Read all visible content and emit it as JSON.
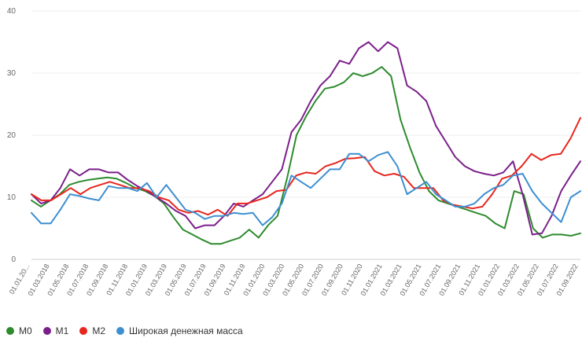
{
  "chart_data": {
    "type": "line",
    "ylim": [
      0,
      40
    ],
    "yticks": [
      "0",
      "10",
      "20",
      "30",
      "40"
    ],
    "xticks": [
      "01.01.20...",
      "01.03.2018",
      "01.05.2018",
      "01.07.2018",
      "01.09.2018",
      "01.11.2018",
      "01.01.2019",
      "01.03.2019",
      "01.05.2019",
      "01.07.2019",
      "01.09.2019",
      "01.11.2019",
      "01.01.2020",
      "01.03.2020",
      "01.05.2020",
      "01.07.2020",
      "01.09.2020",
      "01.11.2020",
      "01.01.2021",
      "01.03.2021",
      "01.05.2021",
      "01.07.2021",
      "01.09.2021",
      "01.11.2021",
      "01.01.2022",
      "01.03.2022",
      "01.05.2022",
      "01.07.2022",
      "01.09.2022"
    ],
    "grid": true,
    "legend_position": "bottom-left",
    "series": [
      {
        "name": "M0",
        "color": "#2e8b2e",
        "values": [
          9.5,
          8.5,
          9.5,
          10.5,
          12.0,
          12.5,
          12.8,
          13.0,
          13.2,
          13.0,
          12.3,
          11.5,
          11.0,
          10.2,
          9.0,
          6.8,
          4.8,
          4.0,
          3.2,
          2.5,
          2.5,
          3.0,
          3.5,
          4.8,
          3.5,
          5.5,
          7.0,
          13.0,
          20.0,
          23.0,
          25.5,
          27.5,
          27.8,
          28.5,
          30.0,
          29.5,
          30.0,
          31.0,
          29.5,
          22.5,
          18.0,
          14.0,
          11.0,
          9.5,
          9.0,
          8.5,
          8.0,
          7.5,
          7.0,
          5.8,
          5.0,
          11.0,
          10.5,
          5.0,
          3.5,
          4.0,
          4.0,
          3.8,
          4.2
        ]
      },
      {
        "name": "M1",
        "color": "#7b1f8a",
        "values": [
          10.5,
          9.0,
          9.5,
          11.5,
          14.5,
          13.5,
          14.5,
          14.5,
          14.0,
          14.0,
          12.8,
          11.8,
          11.0,
          10.0,
          9.0,
          7.8,
          7.0,
          5.0,
          5.5,
          5.5,
          7.0,
          9.0,
          8.5,
          9.5,
          10.5,
          12.5,
          14.5,
          20.5,
          22.5,
          25.5,
          28.0,
          29.5,
          32.0,
          31.5,
          34.0,
          35.0,
          33.5,
          35.0,
          34.0,
          28.0,
          27.0,
          25.5,
          21.5,
          19.0,
          16.5,
          15.0,
          14.2,
          13.8,
          13.5,
          14.0,
          15.8,
          10.5,
          4.0,
          4.2,
          7.0,
          11.0,
          13.5,
          15.8
        ]
      },
      {
        "name": "M2",
        "color": "#e8261e",
        "values": [
          10.5,
          9.5,
          9.5,
          10.5,
          11.5,
          10.5,
          11.5,
          12.0,
          12.5,
          12.0,
          11.5,
          11.5,
          11.0,
          10.0,
          9.5,
          8.0,
          7.5,
          7.8,
          7.2,
          8.0,
          7.0,
          9.0,
          9.0,
          9.5,
          10.0,
          11.0,
          11.2,
          13.5,
          14.0,
          13.8,
          15.0,
          15.5,
          16.2,
          16.3,
          16.5,
          14.2,
          13.5,
          13.8,
          13.3,
          11.5,
          11.5,
          11.5,
          9.5,
          8.8,
          8.5,
          8.2,
          8.5,
          10.5,
          13.0,
          13.5,
          15.0,
          17.0,
          16.0,
          16.8,
          17.0,
          19.5,
          22.8
        ]
      },
      {
        "name": "Широкая денежная масса",
        "color": "#3d8fd1",
        "values": [
          7.5,
          5.8,
          5.8,
          8.0,
          10.5,
          10.2,
          9.8,
          9.5,
          11.8,
          11.5,
          11.5,
          11.0,
          12.3,
          10.0,
          12.0,
          10.0,
          8.0,
          7.5,
          6.5,
          7.0,
          7.0,
          7.5,
          7.3,
          7.5,
          5.5,
          6.8,
          9.0,
          13.5,
          12.5,
          11.5,
          13.0,
          14.5,
          14.5,
          17.0,
          17.0,
          15.8,
          16.8,
          17.3,
          15.0,
          10.5,
          11.5,
          12.5,
          10.5,
          9.5,
          8.5,
          8.5,
          9.0,
          10.5,
          11.5,
          12.0,
          13.5,
          13.8,
          11.0,
          9.0,
          7.5,
          6.0,
          10.0,
          11.0
        ]
      }
    ]
  }
}
